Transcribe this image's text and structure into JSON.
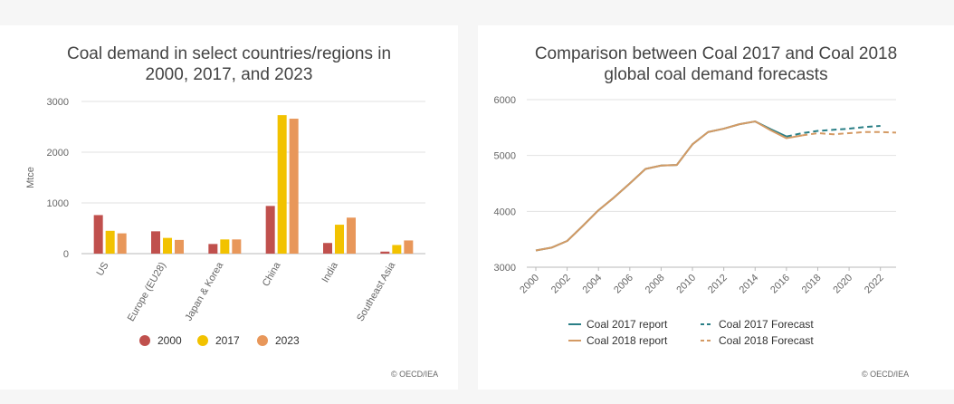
{
  "credit": "© OECD/IEA",
  "colors": {
    "c2000": "#c0504d",
    "c2017": "#f2c200",
    "c2023": "#e8975a",
    "report2017": "#2a7f86",
    "report2018": "#d49a64",
    "grid": "#e2e2e2",
    "axis": "#9aa6ad",
    "text": "#666666"
  },
  "chart_data": [
    {
      "type": "bar",
      "title_line1": "Coal demand in select countries/regions in",
      "title_line2": "2000, 2017, and 2023",
      "ylabel": "Mtce",
      "xlabel": "",
      "ylim": [
        0,
        3000
      ],
      "yticks": [
        0,
        1000,
        2000,
        3000
      ],
      "grid": true,
      "legend_position": "bottom",
      "categories": [
        "US",
        "Europe (EU28)",
        "Japan & Korea",
        "China",
        "India",
        "Southeast Asia"
      ],
      "series": [
        {
          "name": "2000",
          "values": [
            760,
            440,
            190,
            940,
            210,
            40
          ]
        },
        {
          "name": "2017",
          "values": [
            450,
            310,
            280,
            2730,
            570,
            170
          ]
        },
        {
          "name": "2023",
          "values": [
            400,
            270,
            280,
            2660,
            710,
            260
          ]
        }
      ]
    },
    {
      "type": "line",
      "title_line1": "Comparison between Coal 2017 and Coal 2018",
      "title_line2": "global coal demand forecasts",
      "ylabel": "",
      "xlabel": "",
      "ylim": [
        3000,
        6000
      ],
      "yticks": [
        3000,
        4000,
        5000,
        6000
      ],
      "xlim": [
        2000,
        2023
      ],
      "xticks": [
        2000,
        2002,
        2004,
        2006,
        2008,
        2010,
        2012,
        2014,
        2016,
        2018,
        2020,
        2022
      ],
      "grid": true,
      "legend_position": "bottom",
      "series": [
        {
          "name": "Coal 2017 report",
          "style": "solid",
          "x": [
            2000,
            2001,
            2002,
            2003,
            2004,
            2005,
            2006,
            2007,
            2008,
            2009,
            2010,
            2011,
            2012,
            2013,
            2014,
            2015,
            2016
          ],
          "y": [
            3300,
            3350,
            3470,
            3740,
            4020,
            4250,
            4500,
            4760,
            4820,
            4830,
            5200,
            5420,
            5480,
            5560,
            5610,
            5470,
            5340
          ]
        },
        {
          "name": "Coal 2018 report",
          "style": "solid",
          "x": [
            2000,
            2001,
            2002,
            2003,
            2004,
            2005,
            2006,
            2007,
            2008,
            2009,
            2010,
            2011,
            2012,
            2013,
            2014,
            2015,
            2016,
            2017
          ],
          "y": [
            3300,
            3350,
            3470,
            3740,
            4020,
            4250,
            4500,
            4760,
            4820,
            4830,
            5200,
            5420,
            5480,
            5560,
            5610,
            5450,
            5310,
            5360
          ]
        },
        {
          "name": "Coal 2017 Forecast",
          "style": "dashed",
          "x": [
            2016,
            2017,
            2018,
            2019,
            2020,
            2021,
            2022
          ],
          "y": [
            5340,
            5400,
            5440,
            5460,
            5480,
            5510,
            5530
          ]
        },
        {
          "name": "Coal 2018 Forecast",
          "style": "dashed",
          "x": [
            2017,
            2018,
            2019,
            2020,
            2021,
            2022,
            2023
          ],
          "y": [
            5360,
            5400,
            5380,
            5400,
            5420,
            5420,
            5410
          ]
        }
      ]
    }
  ]
}
